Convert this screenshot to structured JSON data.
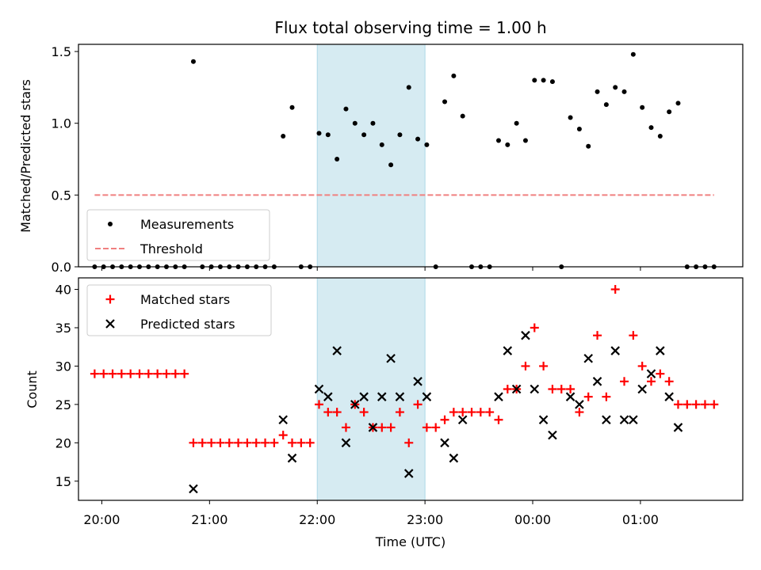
{
  "chart_data": [
    {
      "type": "scatter",
      "title": "Flux total observing time = 1.00 h",
      "xlabel": "",
      "ylabel": "Matched/Predicted stars",
      "xlim": [
        "19:47",
        "01:57"
      ],
      "ylim": [
        0,
        1.55
      ],
      "yticks": [
        0.0,
        0.5,
        1.0,
        1.5
      ],
      "ytick_labels": [
        "0.0",
        "0.5",
        "1.0",
        "1.5"
      ],
      "shaded_region": {
        "x": [
          "22:00",
          "23:00"
        ],
        "color": "#add8e6"
      },
      "legend": {
        "placement": "lower-left",
        "entries": [
          "Measurements",
          "Threshold"
        ]
      },
      "series": [
        {
          "name": "Measurements",
          "marker": "dot",
          "color": "#000000",
          "points": [
            [
              "19:56",
              0
            ],
            [
              "20:01",
              0
            ],
            [
              "20:06",
              0
            ],
            [
              "20:11",
              0
            ],
            [
              "20:16",
              0
            ],
            [
              "20:21",
              0
            ],
            [
              "20:26",
              0
            ],
            [
              "20:31",
              0
            ],
            [
              "20:36",
              0
            ],
            [
              "20:41",
              0
            ],
            [
              "20:46",
              0
            ],
            [
              "20:51",
              1.43
            ],
            [
              "20:56",
              0
            ],
            [
              "21:01",
              0
            ],
            [
              "21:06",
              0
            ],
            [
              "21:11",
              0
            ],
            [
              "21:16",
              0
            ],
            [
              "21:21",
              0
            ],
            [
              "21:26",
              0
            ],
            [
              "21:31",
              0
            ],
            [
              "21:36",
              0
            ],
            [
              "21:41",
              0.91
            ],
            [
              "21:46",
              1.11
            ],
            [
              "21:51",
              0
            ],
            [
              "21:56",
              0
            ],
            [
              "22:01",
              0.93
            ],
            [
              "22:06",
              0.92
            ],
            [
              "22:11",
              0.75
            ],
            [
              "22:16",
              1.1
            ],
            [
              "22:21",
              1.0
            ],
            [
              "22:26",
              0.92
            ],
            [
              "22:31",
              1.0
            ],
            [
              "22:36",
              0.85
            ],
            [
              "22:41",
              0.71
            ],
            [
              "22:46",
              0.92
            ],
            [
              "22:51",
              1.25
            ],
            [
              "22:56",
              0.89
            ],
            [
              "23:01",
              0.85
            ],
            [
              "23:06",
              0
            ],
            [
              "23:11",
              1.15
            ],
            [
              "23:16",
              1.33
            ],
            [
              "23:21",
              1.05
            ],
            [
              "23:26",
              0
            ],
            [
              "23:31",
              0
            ],
            [
              "23:36",
              0
            ],
            [
              "23:41",
              0.88
            ],
            [
              "23:46",
              0.85
            ],
            [
              "23:51",
              1.0
            ],
            [
              "23:56",
              0.88
            ],
            [
              "00:01",
              1.3
            ],
            [
              "00:06",
              1.3
            ],
            [
              "00:11",
              1.29
            ],
            [
              "00:16",
              0
            ],
            [
              "00:21",
              1.04
            ],
            [
              "00:26",
              0.96
            ],
            [
              "00:31",
              0.84
            ],
            [
              "00:36",
              1.22
            ],
            [
              "00:41",
              1.13
            ],
            [
              "00:46",
              1.25
            ],
            [
              "00:51",
              1.22
            ],
            [
              "00:56",
              1.48
            ],
            [
              "01:01",
              1.11
            ],
            [
              "01:06",
              0.97
            ],
            [
              "01:11",
              0.91
            ],
            [
              "01:16",
              1.08
            ],
            [
              "01:21",
              1.14
            ],
            [
              "01:26",
              0
            ],
            [
              "01:31",
              0
            ],
            [
              "01:36",
              0
            ],
            [
              "01:41",
              0
            ]
          ]
        },
        {
          "name": "Threshold",
          "line_style": "dashed",
          "color": "#f08080",
          "points": [
            [
              "19:56",
              0.5
            ],
            [
              "01:41",
              0.5
            ]
          ]
        }
      ]
    },
    {
      "type": "scatter",
      "title": "",
      "xlabel": "Time (UTC)",
      "ylabel": "Count",
      "xlim": [
        "19:47",
        "01:57"
      ],
      "ylim": [
        12.5,
        41.5
      ],
      "yticks": [
        15,
        20,
        25,
        30,
        35,
        40
      ],
      "xticks": [
        "20:00",
        "21:00",
        "22:00",
        "23:00",
        "00:00",
        "01:00"
      ],
      "shaded_region": {
        "x": [
          "22:00",
          "23:00"
        ],
        "color": "#add8e6"
      },
      "legend": {
        "placement": "upper-left",
        "entries": [
          "Matched stars",
          "Predicted stars"
        ]
      },
      "series": [
        {
          "name": "Matched stars",
          "marker": "plus",
          "color": "#ff0000",
          "points": [
            [
              "19:56",
              29
            ],
            [
              "20:01",
              29
            ],
            [
              "20:06",
              29
            ],
            [
              "20:11",
              29
            ],
            [
              "20:16",
              29
            ],
            [
              "20:21",
              29
            ],
            [
              "20:26",
              29
            ],
            [
              "20:31",
              29
            ],
            [
              "20:36",
              29
            ],
            [
              "20:41",
              29
            ],
            [
              "20:46",
              29
            ],
            [
              "20:51",
              20
            ],
            [
              "20:56",
              20
            ],
            [
              "21:01",
              20
            ],
            [
              "21:06",
              20
            ],
            [
              "21:11",
              20
            ],
            [
              "21:16",
              20
            ],
            [
              "21:21",
              20
            ],
            [
              "21:26",
              20
            ],
            [
              "21:31",
              20
            ],
            [
              "21:36",
              20
            ],
            [
              "21:41",
              21
            ],
            [
              "21:46",
              20
            ],
            [
              "21:51",
              20
            ],
            [
              "21:56",
              20
            ],
            [
              "22:01",
              25
            ],
            [
              "22:06",
              24
            ],
            [
              "22:11",
              24
            ],
            [
              "22:16",
              22
            ],
            [
              "22:21",
              25
            ],
            [
              "22:26",
              24
            ],
            [
              "22:31",
              22
            ],
            [
              "22:36",
              22
            ],
            [
              "22:41",
              22
            ],
            [
              "22:46",
              24
            ],
            [
              "22:51",
              20
            ],
            [
              "22:56",
              25
            ],
            [
              "23:01",
              22
            ],
            [
              "23:06",
              22
            ],
            [
              "23:11",
              23
            ],
            [
              "23:16",
              24
            ],
            [
              "23:21",
              24
            ],
            [
              "23:26",
              24
            ],
            [
              "23:31",
              24
            ],
            [
              "23:36",
              24
            ],
            [
              "23:41",
              23
            ],
            [
              "23:46",
              27
            ],
            [
              "23:51",
              27
            ],
            [
              "23:56",
              30
            ],
            [
              "00:01",
              35
            ],
            [
              "00:06",
              30
            ],
            [
              "00:11",
              27
            ],
            [
              "00:16",
              27
            ],
            [
              "00:21",
              27
            ],
            [
              "00:26",
              24
            ],
            [
              "00:31",
              26
            ],
            [
              "00:36",
              34
            ],
            [
              "00:41",
              26
            ],
            [
              "00:46",
              40
            ],
            [
              "00:51",
              28
            ],
            [
              "00:56",
              34
            ],
            [
              "01:01",
              30
            ],
            [
              "01:06",
              28
            ],
            [
              "01:11",
              29
            ],
            [
              "01:16",
              28
            ],
            [
              "01:21",
              25
            ],
            [
              "01:26",
              25
            ],
            [
              "01:31",
              25
            ],
            [
              "01:36",
              25
            ],
            [
              "01:41",
              25
            ]
          ]
        },
        {
          "name": "Predicted stars",
          "marker": "x",
          "color": "#000000",
          "points": [
            [
              "20:51",
              14
            ],
            [
              "21:41",
              23
            ],
            [
              "21:46",
              18
            ],
            [
              "22:01",
              27
            ],
            [
              "22:06",
              26
            ],
            [
              "22:11",
              32
            ],
            [
              "22:16",
              20
            ],
            [
              "22:21",
              25
            ],
            [
              "22:26",
              26
            ],
            [
              "22:31",
              22
            ],
            [
              "22:36",
              26
            ],
            [
              "22:41",
              31
            ],
            [
              "22:46",
              26
            ],
            [
              "22:51",
              16
            ],
            [
              "22:56",
              28
            ],
            [
              "23:01",
              26
            ],
            [
              "23:11",
              20
            ],
            [
              "23:16",
              18
            ],
            [
              "23:21",
              23
            ],
            [
              "23:41",
              26
            ],
            [
              "23:46",
              32
            ],
            [
              "23:51",
              27
            ],
            [
              "23:56",
              34
            ],
            [
              "00:01",
              27
            ],
            [
              "00:06",
              23
            ],
            [
              "00:11",
              21
            ],
            [
              "00:21",
              26
            ],
            [
              "00:26",
              25
            ],
            [
              "00:31",
              31
            ],
            [
              "00:36",
              28
            ],
            [
              "00:41",
              23
            ],
            [
              "00:46",
              32
            ],
            [
              "00:51",
              23
            ],
            [
              "00:56",
              23
            ],
            [
              "01:01",
              27
            ],
            [
              "01:06",
              29
            ],
            [
              "01:11",
              32
            ],
            [
              "01:16",
              26
            ],
            [
              "01:21",
              22
            ]
          ]
        }
      ]
    }
  ]
}
